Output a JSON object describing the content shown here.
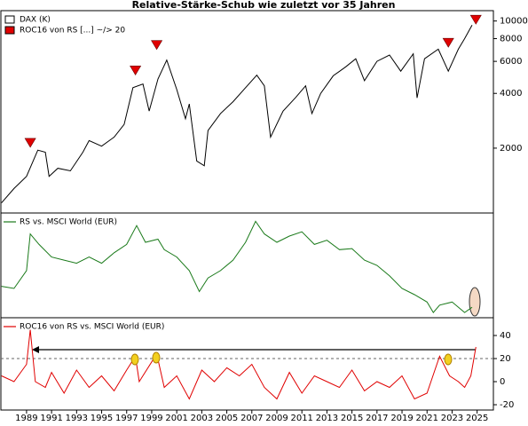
{
  "chart_data": [
    {
      "type": "line",
      "title": "Relative-Stärke-Schub wie zuletzt vor 35 Jahren",
      "log": true,
      "xlim": [
        1986.95,
        2026.3
      ],
      "ylim": [
        880,
        11400
      ],
      "yticks": [
        2000,
        4000,
        6000,
        8000,
        10000
      ],
      "grid": false,
      "legend": "top-left",
      "series": [
        {
          "name": "DAX (K)",
          "color": "#000000",
          "x": [
            1987.0,
            1988.0,
            1989.0,
            1989.9,
            1990.5,
            1990.8,
            1991.5,
            1992.5,
            1993.5,
            1994.0,
            1995.0,
            1996.0,
            1996.8,
            1997.5,
            1998.3,
            1998.8,
            1999.5,
            2000.2,
            2001.0,
            2001.7,
            2002.0,
            2002.6,
            2003.2,
            2003.5,
            2004.5,
            2005.5,
            2006.5,
            2007.4,
            2008.0,
            2008.5,
            2009.5,
            2010.5,
            2011.3,
            2011.8,
            2012.5,
            2013.5,
            2014.5,
            2015.3,
            2016.0,
            2017.0,
            2018.0,
            2018.9,
            2019.9,
            2020.2,
            2020.8,
            2021.9,
            2022.7,
            2023.5,
            2024.0,
            2024.6
          ],
          "values": [
            1000,
            1200,
            1400,
            1950,
            1900,
            1400,
            1550,
            1500,
            1900,
            2200,
            2050,
            2300,
            2700,
            4300,
            4500,
            3200,
            4800,
            6100,
            4200,
            2900,
            3500,
            1700,
            1600,
            2500,
            3100,
            3600,
            4300,
            5040,
            4400,
            2300,
            3200,
            3800,
            4400,
            3100,
            4000,
            5000,
            5600,
            6200,
            4700,
            6000,
            6500,
            5300,
            6600,
            3780,
            6200,
            7000,
            5300,
            7000,
            8000,
            9500
          ]
        },
        {
          "name": "ROC16 von RS [...] ~/> 20",
          "color": "#e00000",
          "marker": "triangle",
          "x": [
            1989.3,
            1997.7,
            1999.4,
            2022.7,
            2024.9
          ],
          "values": [
            2000,
            5000,
            6900,
            7100,
            9500
          ]
        }
      ]
    },
    {
      "type": "line",
      "xlim": [
        1986.95,
        2026.3
      ],
      "ylim": [
        0,
        100
      ],
      "legend": "top-left",
      "series": [
        {
          "name": "RS vs. MSCI World (EUR)",
          "color": "#1a7a1a",
          "x": [
            1987,
            1988,
            1989,
            1989.3,
            1990,
            1991,
            1992,
            1993,
            1994,
            1995,
            1996,
            1997,
            1997.8,
            1998.5,
            1999.5,
            2000,
            2001,
            2002,
            2002.8,
            2003.5,
            2004.5,
            2005.5,
            2006.5,
            2007.3,
            2008,
            2009,
            2010,
            2011,
            2012,
            2013,
            2014,
            2015,
            2016,
            2017,
            2018,
            2019,
            2020,
            2021,
            2021.5,
            2022,
            2023,
            2024,
            2024.6
          ],
          "values": [
            30,
            28,
            45,
            80,
            70,
            58,
            55,
            52,
            58,
            52,
            62,
            70,
            88,
            72,
            75,
            65,
            58,
            45,
            25,
            38,
            45,
            55,
            72,
            92,
            80,
            72,
            78,
            82,
            70,
            74,
            65,
            66,
            55,
            50,
            40,
            28,
            22,
            15,
            5,
            12,
            15,
            5,
            10
          ]
        }
      ]
    },
    {
      "type": "line",
      "xlim": [
        1986.95,
        2026.3
      ],
      "ylim": [
        -24.6,
        55.4
      ],
      "yticks": [
        -20,
        0,
        20,
        40
      ],
      "threshold": 20,
      "legend": "top-left",
      "xticks": [
        1989,
        1991,
        1993,
        1995,
        1997,
        1999,
        2001,
        2003,
        2005,
        2007,
        2009,
        2011,
        2013,
        2015,
        2017,
        2019,
        2021,
        2023,
        2025
      ],
      "series": [
        {
          "name": "ROC16 von RS vs. MSCI World (EUR)",
          "color": "#e00000",
          "x": [
            1987,
            1988,
            1989.0,
            1989.3,
            1989.7,
            1990.5,
            1991,
            1992,
            1993,
            1994,
            1995,
            1996,
            1997,
            1997.7,
            1998,
            1999.4,
            2000,
            2001,
            2002,
            2003,
            2004,
            2005,
            2006,
            2007,
            2008,
            2009,
            2010,
            2011,
            2012,
            2013,
            2014,
            2015,
            2016,
            2017,
            2018,
            2019,
            2020,
            2021,
            2022,
            2022.8,
            2023.5,
            2024,
            2024.5,
            2024.9
          ],
          "values": [
            5,
            0,
            15,
            45,
            0,
            -5,
            8,
            -10,
            10,
            -5,
            5,
            -8,
            10,
            22,
            0,
            24,
            -5,
            5,
            -15,
            10,
            0,
            12,
            5,
            15,
            -5,
            -15,
            8,
            -10,
            5,
            0,
            -5,
            10,
            -8,
            0,
            -5,
            5,
            -15,
            -10,
            22,
            5,
            0,
            -5,
            5,
            30
          ]
        }
      ]
    }
  ]
}
